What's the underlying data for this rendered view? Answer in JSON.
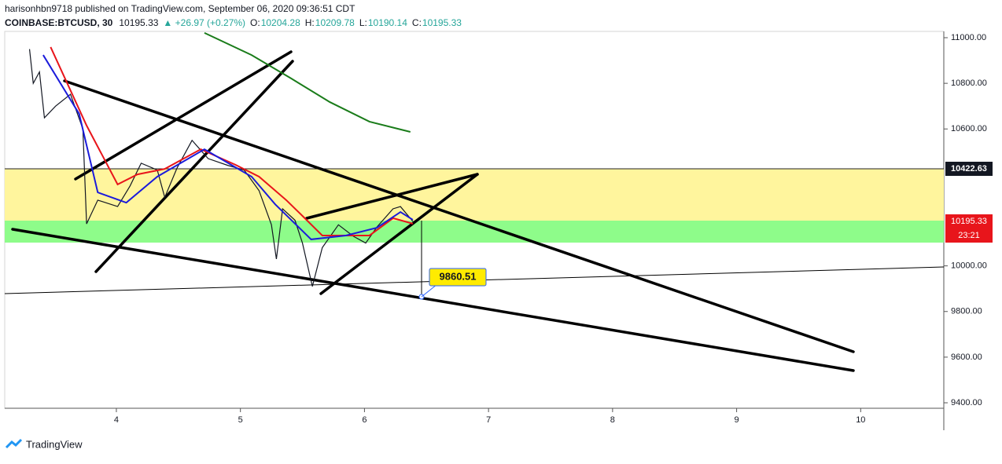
{
  "header": {
    "publisher": "harisonhbn9718 published on TradingView.com, September 06, 2020 09:36:51 CDT",
    "symbol": "COINBASE:BTCUSD, 30",
    "last": "10195.33",
    "change": "▲ +26.97 (+0.27%)",
    "o_label": "O:",
    "o": "10204.28",
    "h_label": "H:",
    "h": "10209.78",
    "l_label": "L:",
    "l": "10190.14",
    "c_label": "C:",
    "c": "10195.33"
  },
  "chart_data": {
    "type": "line",
    "xlim": [
      3.1,
      10.67
    ],
    "xticks": [
      4,
      5,
      6,
      7,
      8,
      9,
      10
    ],
    "ylim": [
      9376,
      11027.5
    ],
    "yticks": [
      {
        "value": 11000,
        "label": "11000.00"
      },
      {
        "value": 10800,
        "label": "10800.00"
      },
      {
        "value": 10600,
        "label": "10600.00"
      },
      {
        "value": 10000,
        "label": "10000.00"
      },
      {
        "value": 9800,
        "label": "9800.00"
      },
      {
        "value": 9600,
        "label": "9600.00"
      },
      {
        "value": 9400,
        "label": "9400.00"
      }
    ],
    "series": [
      {
        "color": "#131722",
        "x": [
          3.3,
          3.33,
          3.38,
          3.42,
          3.51,
          3.63,
          3.73,
          3.76,
          3.85,
          4.01,
          4.11,
          4.2,
          4.33,
          4.39,
          4.49,
          4.61,
          4.74,
          4.9,
          5.03,
          5.15,
          5.25,
          5.29,
          5.34,
          5.44,
          5.5,
          5.58,
          5.66,
          5.79,
          5.91,
          6.01,
          6.1,
          6.23,
          6.29,
          6.39
        ],
        "values": [
          10950,
          10800,
          10850,
          10649,
          10700,
          10752,
          10600,
          10184,
          10288,
          10260,
          10350,
          10450,
          10420,
          10300,
          10430,
          10550,
          10470,
          10440,
          10420,
          10330,
          10180,
          10030,
          10250,
          10200,
          10100,
          9910,
          10080,
          10180,
          10130,
          10100,
          10170,
          10250,
          10260,
          10195
        ]
      },
      {
        "color": "#e8151b",
        "x": [
          3.47,
          3.76,
          4.01,
          4.17,
          4.39,
          4.68,
          4.96,
          5.15,
          5.37,
          5.5,
          5.66,
          5.85,
          6.04,
          6.23,
          6.39
        ],
        "values": [
          10959,
          10615,
          10357,
          10401,
          10425,
          10511,
          10443,
          10391,
          10288,
          10219,
          10133,
          10133,
          10133,
          10209,
          10185
        ]
      },
      {
        "color": "#1b1bdb",
        "x": [
          3.41,
          3.7,
          3.85,
          4.08,
          4.33,
          4.71,
          5.09,
          5.28,
          5.57,
          5.85,
          6.1,
          6.29,
          6.39
        ],
        "values": [
          10924,
          10666,
          10322,
          10277,
          10391,
          10511,
          10391,
          10270,
          10116,
          10133,
          10167,
          10236,
          10202
        ]
      },
      {
        "color": "#1a7c1a",
        "x": [
          4.71,
          5.09,
          5.41,
          5.72,
          6.04,
          6.37
        ],
        "values": [
          11021,
          10924,
          10821,
          10718,
          10632,
          10587
        ]
      }
    ],
    "level_label": "10422.63",
    "price_label": "10195.33",
    "countdown": "23:21",
    "annotation": "9860.51"
  },
  "footer": "TradingView"
}
